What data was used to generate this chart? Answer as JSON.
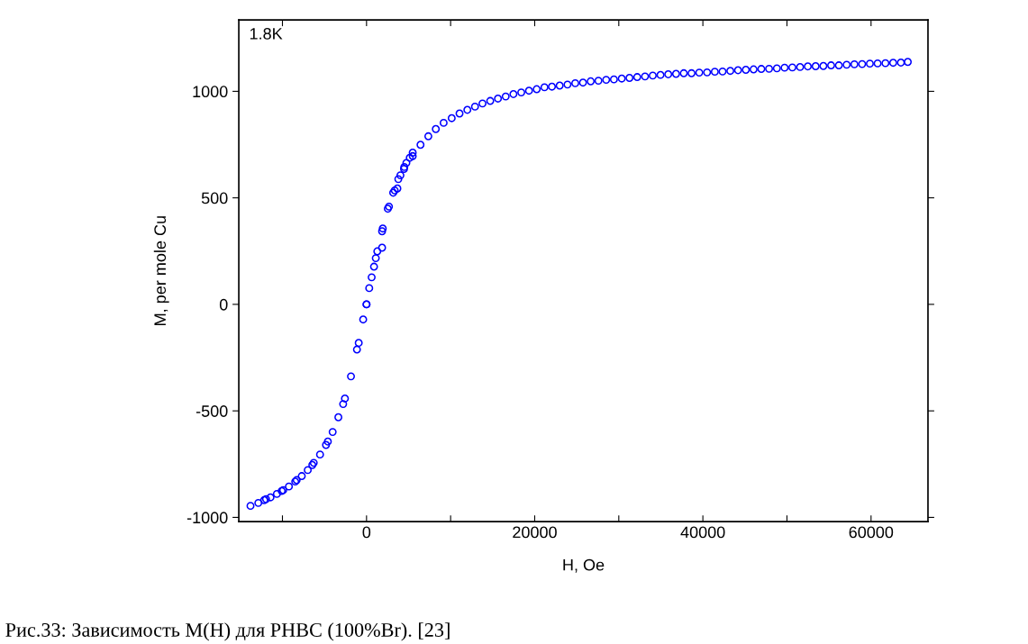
{
  "chart_data": {
    "type": "scatter",
    "xlabel": "H, Oe",
    "ylabel": "M, per mole Cu",
    "annotations": [
      "1.8K",
      "Рис.33: Зависимость M(H) для PHBC (100%Br). [23]"
    ],
    "marker": "circle",
    "grid": false,
    "legend": false,
    "xlim": [
      -15190,
      66770
    ],
    "ylim": [
      -1020,
      1335
    ],
    "xticks": [
      {
        "value": -10000,
        "label": null
      },
      0,
      {
        "value": 10000,
        "label": null
      },
      20000,
      {
        "value": 30000,
        "label": null
      },
      40000,
      {
        "value": 50000,
        "label": null
      },
      60000
    ],
    "yticks": [
      -1000,
      -500,
      0,
      500,
      1000
    ],
    "series": [
      {
        "color": "#0000ff",
        "x": [
          -13800,
          -12870,
          -12170,
          -11950,
          -11420,
          -10660,
          -10090,
          -9910,
          -9230,
          -8480,
          -8310,
          -7700,
          -6990,
          -6450,
          -6280,
          -5530,
          -4820,
          -4600,
          -4030,
          -3350,
          -2780,
          -2570,
          -1850,
          -1140,
          -930,
          -400,
          0,
          0,
          320,
          610,
          890,
          1100,
          1280,
          1850,
          1850,
          1930,
          2530,
          2670,
          3170,
          3350,
          3670,
          3780,
          4030,
          4460,
          4490,
          4740,
          5140,
          5490,
          5490,
          6420,
          7350,
          8240,
          9170,
          10130,
          11060,
          11990,
          12900,
          13790,
          14710,
          15630,
          16550,
          17470,
          18400,
          19320,
          20240,
          21160,
          22050,
          22970,
          23900,
          24820,
          25740,
          26660,
          27580,
          28500,
          29420,
          30350,
          31270,
          32190,
          33120,
          34040,
          34960,
          35880,
          36810,
          37730,
          38650,
          39570,
          40500,
          41420,
          42340,
          43260,
          44180,
          45110,
          46030,
          46950,
          47870,
          48800,
          49720,
          50640,
          51560,
          52480,
          53410,
          54330,
          55250,
          56170,
          57100,
          58020,
          58940,
          59860,
          60780,
          61710,
          62630,
          63550,
          64370
        ],
        "values": [
          -946,
          -932,
          -919,
          -914,
          -906,
          -890,
          -876,
          -872,
          -855,
          -832,
          -825,
          -806,
          -778,
          -754,
          -744,
          -705,
          -660,
          -644,
          -599,
          -530,
          -468,
          -442,
          -338,
          -212,
          -181,
          -71,
          0,
          0,
          76,
          127,
          177,
          217,
          249,
          266,
          343,
          356,
          449,
          459,
          524,
          535,
          544,
          588,
          606,
          636,
          645,
          664,
          688,
          696,
          712,
          749,
          789,
          823,
          852,
          874,
          896,
          913,
          928,
          943,
          955,
          966,
          976,
          987,
          995,
          1003,
          1010,
          1019,
          1022,
          1027,
          1032,
          1038,
          1041,
          1047,
          1050,
          1054,
          1056,
          1060,
          1063,
          1067,
          1070,
          1074,
          1077,
          1080,
          1082,
          1085,
          1085,
          1088,
          1089,
          1092,
          1093,
          1096,
          1099,
          1101,
          1103,
          1105,
          1106,
          1108,
          1111,
          1112,
          1114,
          1117,
          1118,
          1119,
          1122,
          1122,
          1125,
          1127,
          1128,
          1130,
          1131,
          1132,
          1134,
          1135,
          1138
        ]
      }
    ]
  }
}
